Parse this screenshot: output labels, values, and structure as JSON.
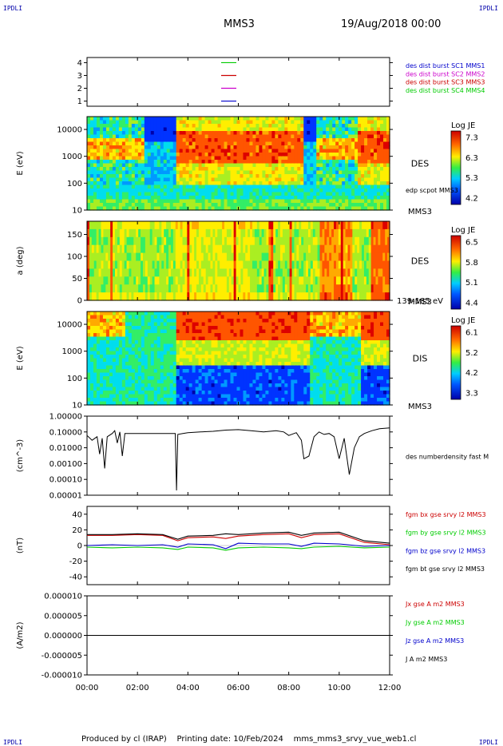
{
  "header": {
    "corner_label": "IPDLI",
    "spacecraft": "MMS3",
    "date": "19/Aug/2018 00:00"
  },
  "footer": {
    "produced": "Produced by cl (IRAP)",
    "printing": "Printing date: 10/Feb/2024",
    "filename": "mms_mms3_srvy_vue_web1.cl"
  },
  "time_axis": {
    "ticks": [
      "00:00",
      "02:00",
      "04:00",
      "06:00",
      "08:00",
      "10:00",
      "12:00"
    ],
    "hours": [
      0,
      12
    ]
  },
  "chart_data": [
    {
      "type": "line",
      "id": "panel1",
      "yticks": [
        "1",
        "2",
        "3",
        "4"
      ],
      "legend": [
        {
          "text": "des dist burst SC1 MMS1",
          "color": "#0000cc"
        },
        {
          "text": "des dist burst SC2 MMS2",
          "color": "#cc00cc"
        },
        {
          "text": "des dist burst SC3 MMS3",
          "color": "#cc0000"
        },
        {
          "text": "des dist burst SC4 MMS4",
          "color": "#00cc00"
        }
      ],
      "marks": [
        {
          "y": 4,
          "color": "#00cc00"
        },
        {
          "y": 3,
          "color": "#cc0000"
        },
        {
          "y": 2,
          "color": "#cc00cc"
        },
        {
          "y": 1,
          "color": "#0000cc"
        }
      ]
    },
    {
      "type": "heatmap",
      "id": "des-energy",
      "ylabel": "E (eV)",
      "yticks": [
        "10",
        "100",
        "1000",
        "10000"
      ],
      "ylog": [
        10,
        30000
      ],
      "label": "DES",
      "sc": "MMS3",
      "overlay_label": "edp scpot MMS3",
      "colorbar": {
        "title": "Log JE",
        "ticks": [
          "7.3",
          "6.3",
          "5.3",
          "4.2"
        ]
      }
    },
    {
      "type": "heatmap",
      "id": "des-pitch",
      "ylabel": "a (deg)",
      "yticks": [
        "0",
        "50",
        "100",
        "150"
      ],
      "ylim": [
        0,
        180
      ],
      "label": "DES",
      "sc": "MMS3",
      "energy_range": "139-185 eV",
      "colorbar": {
        "title": "Log JE",
        "ticks": [
          "6.5",
          "5.8",
          "5.1",
          "4.4"
        ]
      }
    },
    {
      "type": "heatmap",
      "id": "dis-energy",
      "ylabel": "E (eV)",
      "yticks": [
        "10",
        "100",
        "1000",
        "10000"
      ],
      "ylog": [
        10,
        30000
      ],
      "label": "DIS",
      "sc": "MMS3",
      "colorbar": {
        "title": "Log JE",
        "ticks": [
          "6.1",
          "5.2",
          "4.2",
          "3.3"
        ]
      }
    },
    {
      "type": "line",
      "id": "density",
      "ylabel": "(cm^-3)",
      "yticks": [
        "1.00000",
        "0.10000",
        "0.01000",
        "0.00100",
        "0.00010",
        "0.00001"
      ],
      "ylog": [
        1e-05,
        1
      ],
      "legend": [
        {
          "text": "des numberdensity fast M",
          "color": "#000000"
        }
      ],
      "series": [
        {
          "x": [
            0,
            0.2,
            0.4,
            0.5,
            0.6,
            0.7,
            0.8,
            1.0,
            1.1,
            1.2,
            1.3,
            1.4,
            1.5,
            1.6,
            3.5,
            3.55,
            3.6,
            3.8,
            4.0,
            4.5,
            5.0,
            5.5,
            6.0,
            6.5,
            7.0,
            7.5,
            7.8,
            8.0,
            8.3,
            8.5,
            8.6,
            8.8,
            9.0,
            9.2,
            9.4,
            9.6,
            9.8,
            10.0,
            10.2,
            10.4,
            10.6,
            10.8,
            11.0,
            11.3,
            11.6,
            12.0
          ],
          "y": [
            0.06,
            0.03,
            0.05,
            0.004,
            0.04,
            0.0005,
            0.05,
            0.08,
            0.12,
            0.02,
            0.1,
            0.003,
            0.08,
            0.08,
            0.08,
            2e-05,
            0.07,
            0.08,
            0.09,
            0.1,
            0.11,
            0.13,
            0.14,
            0.12,
            0.1,
            0.12,
            0.1,
            0.06,
            0.09,
            0.03,
            0.002,
            0.003,
            0.05,
            0.1,
            0.07,
            0.08,
            0.05,
            0.002,
            0.04,
            0.0002,
            0.01,
            0.05,
            0.08,
            0.12,
            0.16,
            0.18
          ]
        }
      ]
    },
    {
      "type": "line",
      "id": "magnetic-field",
      "ylabel": "(nT)",
      "yticks": [
        "40",
        "20",
        "0",
        "-20",
        "-40"
      ],
      "ylim": [
        -50,
        50
      ],
      "legend": [
        {
          "text": "fgm bx gse srvy l2 MMS3",
          "color": "#cc0000"
        },
        {
          "text": "fgm by gse srvy l2 MMS3",
          "color": "#00cc00"
        },
        {
          "text": "fgm bz gse srvy l2 MMS3",
          "color": "#0000cc"
        },
        {
          "text": "fgm bt gse srvy l2 MMS3",
          "color": "#000000"
        }
      ],
      "series": [
        {
          "color": "#cc0000",
          "x": [
            0,
            1,
            2,
            3,
            3.6,
            4,
            5,
            5.5,
            6,
            7,
            8,
            8.5,
            9,
            10,
            11,
            12
          ],
          "y": [
            13,
            13,
            14,
            13,
            6,
            10,
            11,
            9,
            12,
            14,
            15,
            10,
            14,
            15,
            4,
            1
          ]
        },
        {
          "color": "#00cc00",
          "x": [
            0,
            1,
            2,
            3,
            3.6,
            4,
            5,
            5.5,
            6,
            7,
            8,
            8.5,
            9,
            10,
            11,
            12
          ],
          "y": [
            -2,
            -3,
            -2,
            -3,
            -5,
            -2,
            -3,
            -6,
            -3,
            -2,
            -3,
            -4,
            -2,
            -1,
            -3,
            -2
          ]
        },
        {
          "color": "#0000cc",
          "x": [
            0,
            1,
            2,
            3,
            3.6,
            4,
            5,
            5.5,
            6,
            7,
            8,
            8.5,
            9,
            10,
            11,
            12
          ],
          "y": [
            0,
            1,
            0,
            1,
            -2,
            2,
            1,
            -4,
            3,
            2,
            2,
            -1,
            3,
            2,
            -1,
            0
          ]
        },
        {
          "color": "#000000",
          "x": [
            0,
            1,
            2,
            3,
            3.6,
            4,
            5,
            5.5,
            6,
            7,
            8,
            8.5,
            9,
            10,
            11,
            12
          ],
          "y": [
            14,
            14,
            15,
            14,
            8,
            12,
            13,
            15,
            14,
            16,
            17,
            13,
            16,
            17,
            6,
            3
          ]
        }
      ]
    },
    {
      "type": "line",
      "id": "current-density",
      "ylabel": "(A/m2)",
      "yticks": [
        "0.000010",
        "0.000005",
        "0.000000",
        "-0.000005",
        "-0.000010"
      ],
      "ylim": [
        -1e-05,
        1e-05
      ],
      "legend": [
        {
          "text": "Jx gse A m2 MMS3",
          "color": "#cc0000"
        },
        {
          "text": "Jy gse A m2 MMS3",
          "color": "#00cc00"
        },
        {
          "text": "Jz gse A m2 MMS3",
          "color": "#0000cc"
        },
        {
          "text": "J A m2 MMS3",
          "color": "#000000"
        }
      ],
      "series": [
        {
          "x": [
            0,
            12
          ],
          "y": [
            0,
            0
          ]
        }
      ]
    }
  ]
}
